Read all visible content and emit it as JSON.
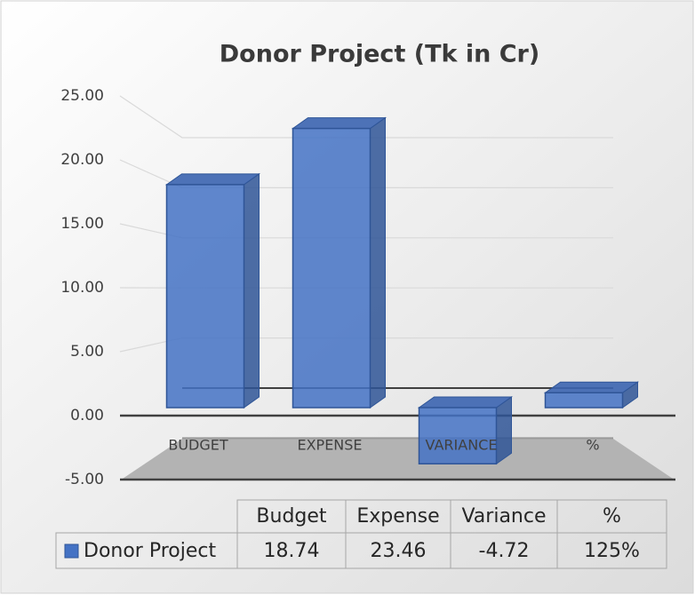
{
  "chart_data": {
    "type": "bar3d",
    "title": "Donor Project (Tk in Cr)",
    "categories": [
      "BUDGET",
      "EXPENSE",
      "VARIANCE",
      "%"
    ],
    "table_headers": [
      "Budget",
      "Expense",
      "Variance",
      "%"
    ],
    "series": [
      {
        "name": "Donor Project",
        "color": "#4472c4",
        "values": [
          18.74,
          23.46,
          -4.72,
          1.25
        ],
        "value_labels": [
          "18.74",
          "23.46",
          "-4.72",
          "125%"
        ]
      }
    ],
    "ylim": [
      -5,
      25
    ],
    "yticks": [
      {
        "value": -5,
        "label": "-5.00"
      },
      {
        "value": 0,
        "label": "0.00"
      },
      {
        "value": 5,
        "label": "5.00"
      },
      {
        "value": 10,
        "label": "10.00"
      },
      {
        "value": 15,
        "label": "15.00"
      },
      {
        "value": 20,
        "label": "20.00"
      },
      {
        "value": 25,
        "label": "25.00"
      }
    ],
    "grid": true
  }
}
